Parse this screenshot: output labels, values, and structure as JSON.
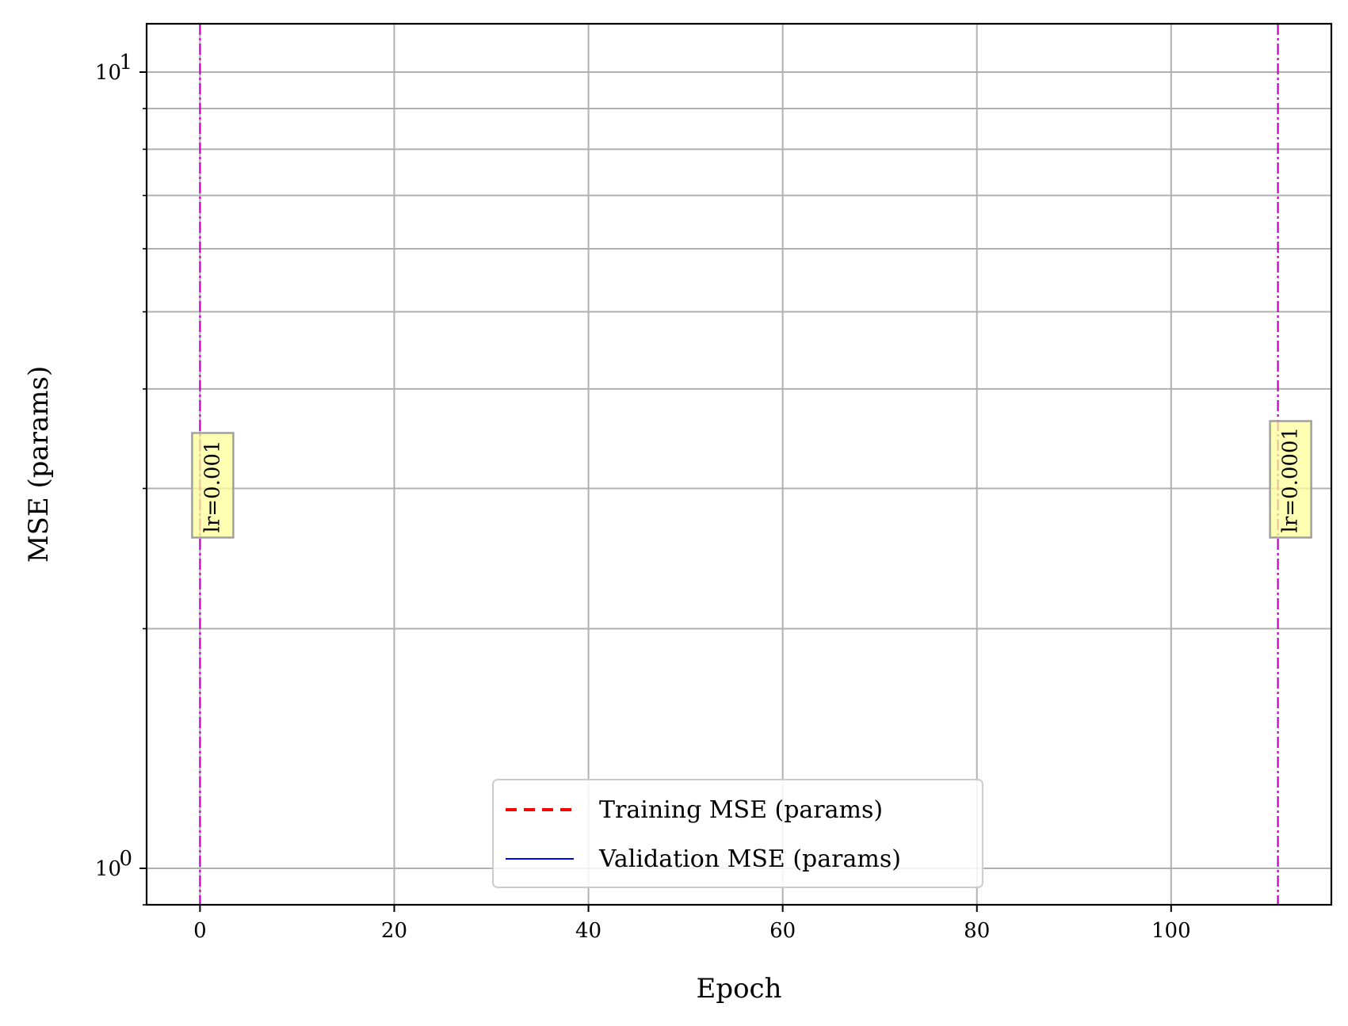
{
  "chart_data": {
    "type": "line",
    "title": "",
    "xlabel": "Epoch",
    "ylabel": "MSE (params)",
    "x_ticks": [
      0,
      20,
      40,
      60,
      80,
      100
    ],
    "xlim": [
      -5.5,
      116.5
    ],
    "y_scale": "log",
    "ylim": [
      0.9,
      11.5
    ],
    "y_major_ticks": [
      {
        "value": 1,
        "label": "10",
        "exp": "0"
      },
      {
        "value": 10,
        "label": "10",
        "exp": "1"
      }
    ],
    "y_minor_ticks": [
      0.9,
      2,
      3,
      4,
      5,
      6,
      7,
      8,
      9
    ],
    "grid": true,
    "legend_position": "lower center",
    "series": [
      {
        "name": "Training MSE (params)",
        "color": "#ff0000",
        "style": "dashed",
        "x": [],
        "y": []
      },
      {
        "name": "Validation MSE (params)",
        "color": "#0000ff",
        "style": "solid",
        "x": [],
        "y": []
      }
    ],
    "vlines": [
      {
        "x": 0,
        "label": "lr=0.001",
        "color": "#bf00bf"
      },
      {
        "x": 111,
        "label": "lr=0.0001",
        "color": "#bf00bf"
      }
    ],
    "annotation_y": 3.0
  }
}
